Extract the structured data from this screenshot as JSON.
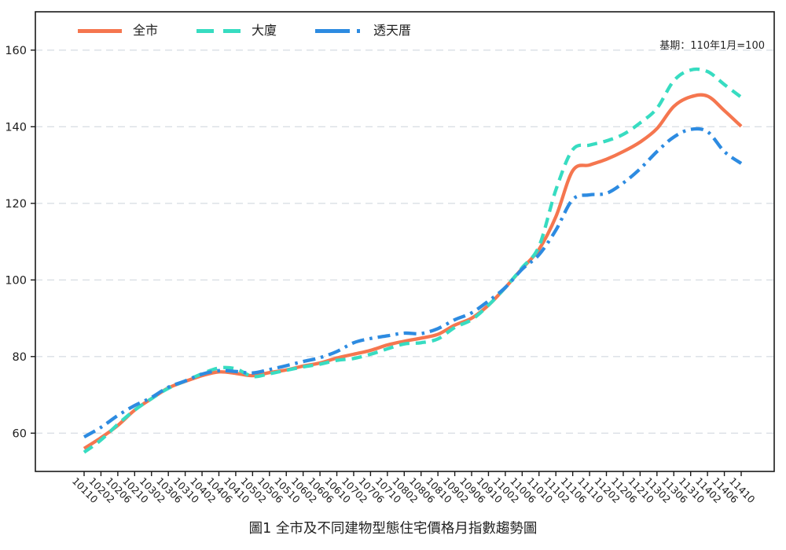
{
  "title": "圖1 全市及不同建物型態住宅價格月指數趨勢圖",
  "annotation": "基期：110年1月=100",
  "chart_data": {
    "type": "line",
    "title": "圖1 全市及不同建物型態住宅價格月指數趨勢圖",
    "note": "基期：110年1月=100",
    "xlabel": "",
    "ylabel": "",
    "ylim": [
      50,
      170
    ],
    "yticks": [
      60,
      80,
      100,
      120,
      140,
      160
    ],
    "grid": true,
    "legend_position": "top-left",
    "categories": [
      "10110",
      "10202",
      "10206",
      "10210",
      "10302",
      "10306",
      "10310",
      "10402",
      "10406",
      "10410",
      "10502",
      "10506",
      "10510",
      "10602",
      "10606",
      "10610",
      "10702",
      "10706",
      "10710",
      "10802",
      "10806",
      "10810",
      "10902",
      "10906",
      "10910",
      "11002",
      "11006",
      "11010",
      "11102",
      "11106",
      "11110",
      "11202",
      "11206",
      "11210",
      "11302",
      "11306",
      "11310",
      "11402",
      "11406",
      "11410"
    ],
    "series": [
      {
        "id": "citywide",
        "name": "全市",
        "color": "#F5764F",
        "dash": "none",
        "values": [
          56.0,
          58.8,
          62.0,
          66.0,
          69.0,
          71.8,
          73.5,
          75.0,
          76.0,
          75.6,
          75.0,
          75.8,
          76.5,
          77.5,
          78.3,
          79.6,
          80.6,
          81.6,
          83.0,
          84.0,
          84.8,
          85.8,
          88.2,
          90.0,
          93.4,
          98.0,
          103.0,
          108.0,
          116.5,
          128.5,
          130.0,
          131.5,
          133.5,
          136.0,
          139.5,
          145.3,
          147.8,
          148.0,
          144.2,
          140.1
        ]
      },
      {
        "id": "apartment-building",
        "name": "大廈",
        "color": "#37DCC1",
        "dash": "13 8",
        "values": [
          55.0,
          58.2,
          62.3,
          66.0,
          69.0,
          71.7,
          73.6,
          75.5,
          77.0,
          76.8,
          74.8,
          75.5,
          76.4,
          77.3,
          78.0,
          79.0,
          79.5,
          80.6,
          82.0,
          83.3,
          83.6,
          84.6,
          87.6,
          89.6,
          93.4,
          98.0,
          103.2,
          108.8,
          123.5,
          134.0,
          135.2,
          136.3,
          138.0,
          141.0,
          144.8,
          152.0,
          154.8,
          154.4,
          151.0,
          147.7
        ]
      },
      {
        "id": "townhouse",
        "name": "透天厝",
        "color": "#2D8BE1",
        "dash": "16 7 3.5 7",
        "values": [
          59.0,
          61.5,
          64.6,
          67.2,
          69.3,
          72.0,
          73.6,
          75.4,
          76.3,
          76.1,
          75.7,
          76.6,
          77.6,
          78.7,
          79.7,
          81.3,
          83.6,
          84.7,
          85.4,
          86.1,
          86.0,
          87.3,
          89.6,
          91.4,
          94.5,
          98.0,
          102.8,
          106.6,
          113.0,
          121.0,
          122.2,
          122.6,
          125.3,
          129.0,
          133.5,
          137.3,
          139.3,
          138.7,
          133.5,
          130.4
        ]
      }
    ]
  }
}
